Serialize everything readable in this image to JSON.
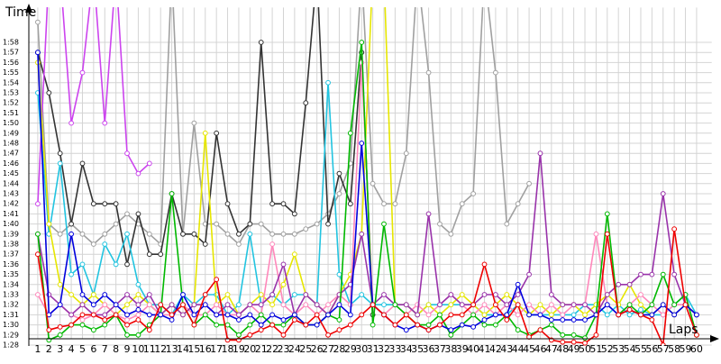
{
  "chart_data": {
    "type": "line",
    "y_label": "Time",
    "x_label": "Laps",
    "grid": true,
    "x": [
      1,
      2,
      3,
      4,
      5,
      6,
      7,
      8,
      9,
      10,
      11,
      12,
      13,
      14,
      15,
      16,
      17,
      18,
      19,
      20,
      21,
      22,
      23,
      24,
      25,
      26,
      27,
      28,
      29,
      30,
      31,
      32,
      33,
      34,
      35,
      36,
      37,
      38,
      39,
      40,
      41,
      42,
      43,
      44,
      45,
      46,
      47,
      48,
      49,
      50,
      51,
      52,
      53,
      54,
      55,
      56,
      57,
      58,
      59,
      60
    ],
    "xlim": [
      0.2,
      62
    ],
    "ylim": [
      88,
      121
    ],
    "yticks": [
      {
        "value": 88,
        "label": "1:28"
      },
      {
        "value": 89,
        "label": "1:29"
      },
      {
        "value": 90,
        "label": "1:30"
      },
      {
        "value": 91,
        "label": "1:31"
      },
      {
        "value": 92,
        "label": "1:32"
      },
      {
        "value": 93,
        "label": "1:33"
      },
      {
        "value": 94,
        "label": "1:34"
      },
      {
        "value": 95,
        "label": "1:35"
      },
      {
        "value": 96,
        "label": "1:36"
      },
      {
        "value": 97,
        "label": "1:37"
      },
      {
        "value": 98,
        "label": "1:38"
      },
      {
        "value": 99,
        "label": "1:39"
      },
      {
        "value": 100,
        "label": "1:40"
      },
      {
        "value": 101,
        "label": "1:41"
      },
      {
        "value": 102,
        "label": "1:42"
      },
      {
        "value": 103,
        "label": "1:43"
      },
      {
        "value": 104,
        "label": "1:44"
      },
      {
        "value": 105,
        "label": "1:45"
      },
      {
        "value": 106,
        "label": "1:46"
      },
      {
        "value": 107,
        "label": "1:47"
      },
      {
        "value": 108,
        "label": "1:48"
      },
      {
        "value": 109,
        "label": "1:49"
      },
      {
        "value": 110,
        "label": "1:50"
      },
      {
        "value": 111,
        "label": "1:51"
      },
      {
        "value": 112,
        "label": "1:52"
      },
      {
        "value": 113,
        "label": "1:53"
      },
      {
        "value": 114,
        "label": "1:54"
      },
      {
        "value": 115,
        "label": "1:55"
      },
      {
        "value": 116,
        "label": "1:56"
      },
      {
        "value": 117,
        "label": "1:57"
      },
      {
        "value": 118,
        "label": "1:58"
      }
    ],
    "series": [
      {
        "color": "#a0a0a0",
        "values": [
          120,
          100,
          99,
          100,
          99,
          98,
          99,
          100,
          101,
          100,
          99,
          98,
          125,
          99,
          110,
          100,
          100,
          99,
          98,
          100,
          100,
          99,
          99,
          99,
          99.5,
          100,
          101,
          103,
          106,
          125,
          104,
          102,
          102,
          107,
          125,
          115,
          100,
          99,
          102,
          103,
          125,
          115,
          100,
          102,
          104,
          null,
          null,
          null,
          null,
          null,
          null,
          null,
          null,
          null,
          null,
          null,
          null,
          null,
          null,
          null
        ]
      },
      {
        "color": "#333333",
        "values": [
          117,
          113,
          107,
          100,
          106,
          102,
          102,
          102,
          96,
          101,
          97,
          97,
          103,
          99,
          99,
          98,
          109,
          102,
          99,
          100,
          118,
          102,
          102,
          101,
          112,
          125,
          100,
          105,
          102,
          117,
          91,
          null,
          null,
          null,
          null,
          null,
          null,
          null,
          null,
          null,
          null,
          null,
          null,
          null,
          null,
          null,
          null,
          null,
          null,
          null,
          null,
          null,
          null,
          null,
          null,
          null,
          null,
          null,
          null,
          null
        ]
      },
      {
        "color": "#cc44ee",
        "values": [
          102,
          125,
          125,
          110,
          115,
          125,
          110,
          125,
          107,
          105,
          106,
          null,
          null,
          null,
          null,
          null,
          null,
          null,
          null,
          null,
          null,
          null,
          null,
          null,
          null,
          null,
          null,
          null,
          null,
          null,
          null,
          null,
          null,
          null,
          null,
          null,
          null,
          null,
          null,
          null,
          null,
          null,
          null,
          null,
          null,
          null,
          null,
          null,
          null,
          null,
          null,
          null,
          null,
          null,
          null,
          null,
          null,
          null,
          null,
          null
        ]
      },
      {
        "color": "#22c4e0",
        "values": [
          113,
          99,
          106,
          95,
          96,
          93,
          98,
          96,
          99,
          94,
          92,
          92,
          91,
          93,
          92,
          93,
          93,
          91,
          92,
          99,
          92,
          93,
          92,
          93,
          93,
          92,
          114,
          95,
          92,
          93,
          92,
          92,
          92,
          92,
          91,
          92,
          92,
          92,
          92,
          92,
          91,
          91,
          91,
          92,
          91,
          91,
          91,
          91,
          91,
          92,
          92,
          91,
          92,
          91,
          91.5,
          91,
          91,
          92,
          93,
          91
        ]
      },
      {
        "color": "#e6e600",
        "values": [
          116,
          100,
          94,
          93,
          92,
          93,
          92,
          91,
          92,
          93,
          92,
          91,
          92,
          91,
          92,
          109,
          92,
          93,
          91,
          92,
          93,
          92,
          94,
          97,
          93,
          92,
          91,
          93,
          95,
          99,
          125,
          125,
          92,
          92,
          91,
          92,
          91,
          92,
          93,
          92,
          91,
          92,
          93,
          92,
          91,
          92,
          91,
          92,
          92,
          91,
          92,
          93,
          92,
          94,
          92,
          91,
          92,
          91,
          92,
          91
        ]
      },
      {
        "color": "#ff88bb",
        "values": [
          93,
          91,
          92,
          91,
          90.5,
          91,
          92,
          91,
          90.5,
          91,
          92,
          91,
          91,
          92,
          91,
          91,
          92,
          91,
          91,
          92,
          91,
          98,
          92,
          91,
          92,
          91,
          92,
          93,
          92,
          116,
          92,
          91,
          92,
          91,
          92,
          91,
          92,
          93,
          92,
          91,
          92,
          91,
          92,
          91,
          92,
          91,
          92,
          91,
          92,
          92,
          99,
          92,
          91,
          92,
          93,
          92,
          91,
          92,
          92,
          91
        ]
      },
      {
        "color": "#9933aa",
        "values": [
          99,
          93,
          92,
          91,
          92,
          91,
          91,
          92,
          93,
          92,
          93,
          91,
          92,
          91,
          92,
          92,
          91,
          92,
          91,
          92,
          92,
          93,
          96,
          91,
          93,
          92,
          91,
          93,
          94,
          99,
          92,
          93,
          92,
          92,
          91,
          101,
          92,
          93,
          92,
          92,
          93,
          93,
          92,
          93,
          95,
          107,
          93,
          92,
          92,
          92,
          91,
          93,
          94,
          94,
          95,
          95,
          103,
          95,
          92,
          91
        ]
      },
      {
        "color": "#00b800",
        "values": [
          99,
          88.5,
          89,
          90,
          90,
          89.5,
          90,
          91,
          89,
          89,
          90,
          91,
          103,
          92,
          90,
          91,
          90,
          90,
          89,
          90,
          91,
          90,
          90,
          91,
          90,
          90,
          91,
          90.5,
          109,
          118,
          90,
          100,
          92,
          91,
          90,
          90,
          91,
          89,
          90,
          91,
          90,
          90,
          91,
          89.5,
          89,
          89.5,
          90,
          89,
          89,
          88.7,
          91,
          101,
          91,
          92,
          91,
          92,
          95,
          92,
          93,
          89
        ]
      },
      {
        "color": "#0000dd",
        "values": [
          117,
          91,
          92,
          99,
          93,
          92,
          93,
          92,
          91,
          91.5,
          91,
          91,
          90.5,
          93,
          91,
          92,
          91,
          91,
          90.5,
          91,
          90,
          91,
          90.5,
          91,
          90,
          90,
          91,
          92,
          91,
          108,
          92,
          91,
          90,
          89.5,
          90,
          89.5,
          90,
          89.5,
          90,
          89.8,
          90.5,
          91,
          91,
          94,
          91,
          91,
          90.5,
          90.5,
          90.5,
          90.5,
          91,
          92,
          91,
          91.5,
          91,
          91,
          92,
          91,
          92,
          91
        ]
      },
      {
        "color": "#ee0000",
        "values": [
          97,
          89.5,
          89.8,
          90,
          91,
          91,
          90.5,
          91,
          90,
          90.5,
          89.5,
          92,
          91,
          92,
          90,
          93,
          94.5,
          88.5,
          88.5,
          89,
          89.5,
          90,
          89,
          90.5,
          90,
          91,
          89,
          89.5,
          90,
          91,
          92,
          91,
          90,
          91,
          90,
          89.5,
          90,
          91,
          91,
          92,
          96,
          92,
          90.5,
          92,
          88.8,
          89.5,
          88.5,
          88.3,
          88.3,
          88.2,
          89,
          99,
          91,
          91.5,
          91,
          90.5,
          88,
          99.5,
          92,
          89
        ]
      }
    ]
  }
}
